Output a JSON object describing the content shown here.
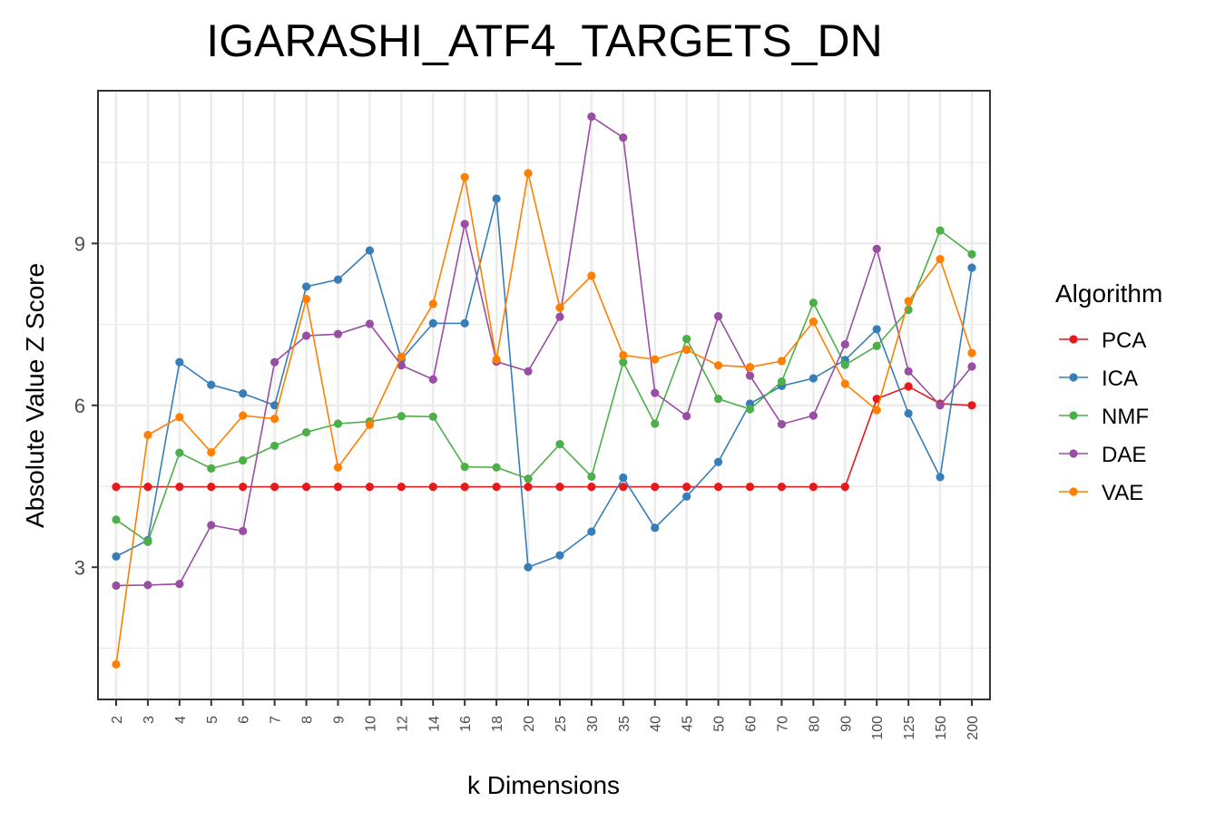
{
  "chart_data": {
    "type": "line",
    "title": "IGARASHI_ATF4_TARGETS_DN",
    "xlabel": "k Dimensions",
    "ylabel": "Absolute Value Z Score",
    "categories": [
      "2",
      "3",
      "4",
      "5",
      "6",
      "7",
      "8",
      "9",
      "10",
      "12",
      "14",
      "16",
      "18",
      "20",
      "25",
      "30",
      "35",
      "40",
      "45",
      "50",
      "60",
      "70",
      "80",
      "90",
      "100",
      "125",
      "150",
      "200"
    ],
    "ylim": [
      0.55,
      11.83
    ],
    "yticks": [
      3,
      6,
      9
    ],
    "grid": true,
    "legend_title": "Algorithm",
    "legend_position": "right",
    "series": [
      {
        "name": "PCA",
        "color": "#E41A1C",
        "values": [
          4.49,
          4.49,
          4.49,
          4.49,
          4.49,
          4.49,
          4.49,
          4.49,
          4.49,
          4.49,
          4.49,
          4.49,
          4.49,
          4.49,
          4.49,
          4.49,
          4.49,
          4.49,
          4.49,
          4.49,
          4.49,
          4.49,
          4.49,
          4.49,
          6.12,
          6.35,
          6.03,
          6.0
        ]
      },
      {
        "name": "ICA",
        "color": "#377EB8",
        "values": [
          3.2,
          3.5,
          6.8,
          6.38,
          6.22,
          6.0,
          8.2,
          8.33,
          8.87,
          6.85,
          7.52,
          7.52,
          9.83,
          3.0,
          3.22,
          3.66,
          4.66,
          3.73,
          4.31,
          4.95,
          6.03,
          6.36,
          6.5,
          6.84,
          7.41,
          5.85,
          4.67,
          8.55
        ]
      },
      {
        "name": "NMF",
        "color": "#4DAF4A",
        "values": [
          3.88,
          3.47,
          5.12,
          4.83,
          4.98,
          5.25,
          5.5,
          5.66,
          5.7,
          5.8,
          5.79,
          4.86,
          4.85,
          4.64,
          5.28,
          4.68,
          6.8,
          5.66,
          7.23,
          6.12,
          5.93,
          6.44,
          7.9,
          6.75,
          7.1,
          7.77,
          9.24,
          8.8
        ]
      },
      {
        "name": "DAE",
        "color": "#984EA3",
        "values": [
          2.66,
          2.67,
          2.69,
          3.78,
          3.67,
          6.8,
          7.29,
          7.32,
          7.51,
          6.74,
          6.48,
          9.36,
          6.81,
          6.63,
          7.64,
          11.35,
          10.96,
          6.23,
          5.8,
          7.65,
          6.55,
          5.65,
          5.81,
          7.13,
          8.9,
          6.63,
          6.0,
          6.72
        ]
      },
      {
        "name": "VAE",
        "color": "#FF7F00",
        "values": [
          1.2,
          5.45,
          5.78,
          5.13,
          5.81,
          5.75,
          7.97,
          4.85,
          5.64,
          6.9,
          7.88,
          10.23,
          6.85,
          10.3,
          7.81,
          8.4,
          6.93,
          6.85,
          7.03,
          6.74,
          6.71,
          6.82,
          7.55,
          6.4,
          5.91,
          7.93,
          8.71,
          6.97
        ]
      }
    ]
  }
}
